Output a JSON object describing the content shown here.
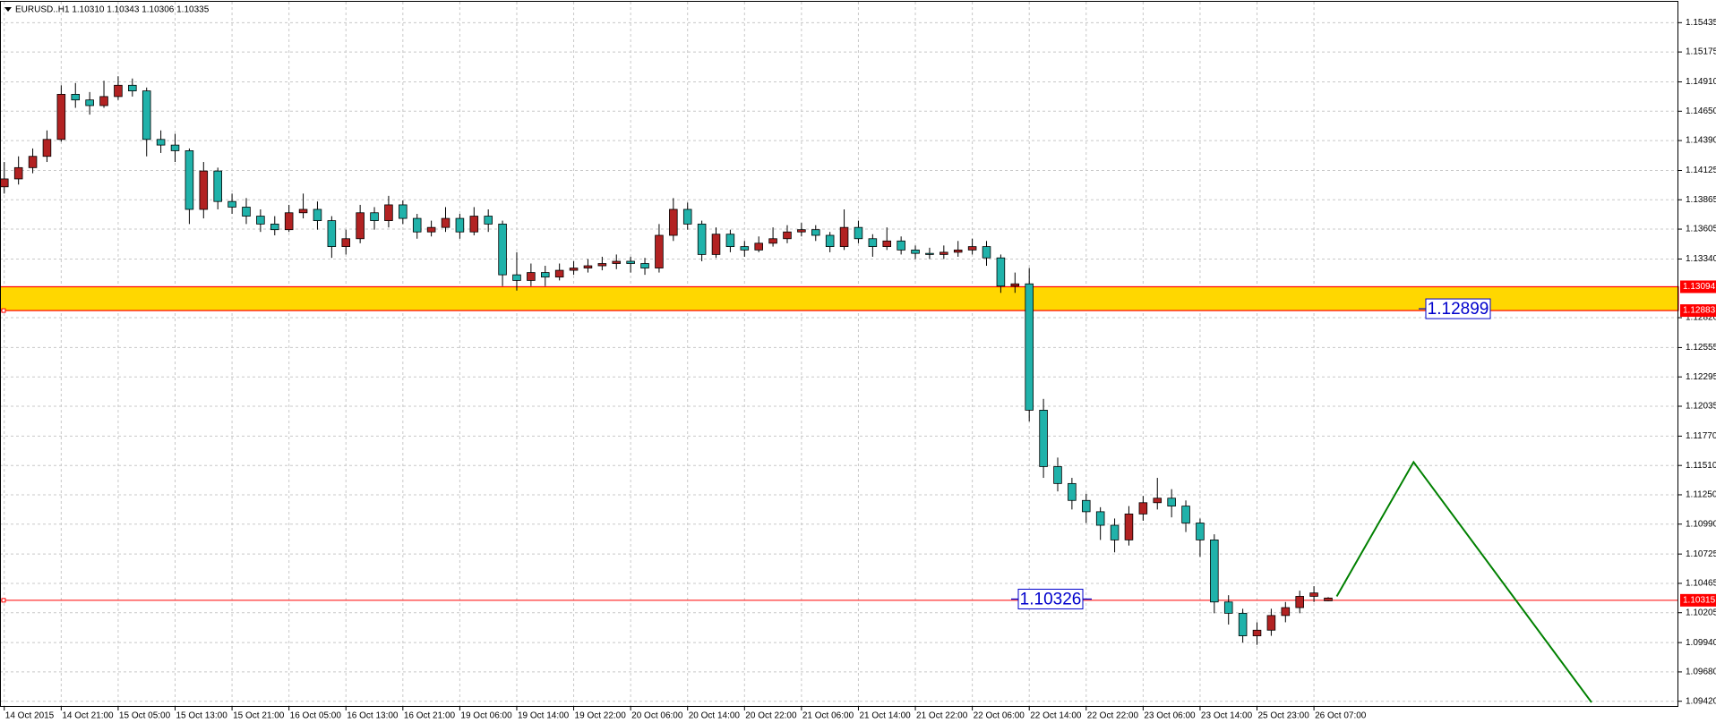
{
  "header": "EURUSD..H1  1.10310 1.10343 1.10306 1.10335",
  "chart_data": {
    "type": "candlestick",
    "up_color": "#b22222",
    "down_color": "#20b2aa",
    "wick_color": "#000000",
    "grid": true,
    "xlim": [
      -0.3,
      117.6
    ],
    "ylim": [
      1.0937,
      1.1562
    ],
    "xticks": [
      {
        "value": 0,
        "label": "14 Oct 2015"
      },
      {
        "value": 4,
        "label": "14 Oct 21:00"
      },
      {
        "value": 8,
        "label": "15 Oct 05:00"
      },
      {
        "value": 12,
        "label": "15 Oct 13:00"
      },
      {
        "value": 16,
        "label": "15 Oct 21:00"
      },
      {
        "value": 20,
        "label": "16 Oct 05:00"
      },
      {
        "value": 24,
        "label": "16 Oct 13:00"
      },
      {
        "value": 28,
        "label": "16 Oct 21:00"
      },
      {
        "value": 32,
        "label": "19 Oct 06:00"
      },
      {
        "value": 36,
        "label": "19 Oct 14:00"
      },
      {
        "value": 40,
        "label": "19 Oct 22:00"
      },
      {
        "value": 44,
        "label": "20 Oct 06:00"
      },
      {
        "value": 48,
        "label": "20 Oct 14:00"
      },
      {
        "value": 52,
        "label": "20 Oct 22:00"
      },
      {
        "value": 56,
        "label": "21 Oct 06:00"
      },
      {
        "value": 60,
        "label": "21 Oct 14:00"
      },
      {
        "value": 64,
        "label": "21 Oct 22:00"
      },
      {
        "value": 68,
        "label": "22 Oct 06:00"
      },
      {
        "value": 72,
        "label": "22 Oct 14:00"
      },
      {
        "value": 76,
        "label": "22 Oct 22:00"
      },
      {
        "value": 80,
        "label": "23 Oct 06:00"
      },
      {
        "value": 84,
        "label": "23 Oct 14:00"
      },
      {
        "value": 88,
        "label": "25 Oct 23:00"
      },
      {
        "value": 92,
        "label": "26 Oct 07:00"
      }
    ],
    "yticks": [
      1.15435,
      1.15175,
      {
        "value": 1.1491,
        "label": "1.14910"
      },
      {
        "value": 1.1465,
        "label": "1.14650"
      },
      {
        "value": 1.1439,
        "label": "1.14390"
      },
      1.14125,
      1.13865,
      1.13605,
      {
        "value": 1.1334,
        "label": "1.13340"
      },
      {
        "value": 1.1282,
        "label": "1.12820"
      },
      1.12555,
      1.12295,
      1.12035,
      {
        "value": 1.1177,
        "label": "1.11770"
      },
      {
        "value": 1.1151,
        "label": "1.11510"
      },
      {
        "value": 1.1125,
        "label": "1.11250"
      },
      {
        "value": 1.1099,
        "label": "1.10990"
      },
      1.10725,
      1.10465,
      1.10205,
      {
        "value": 1.0994,
        "label": "1.09940"
      },
      {
        "value": 1.0968,
        "label": "1.09680"
      },
      {
        "value": 1.0942,
        "label": "1.09420"
      }
    ],
    "candles": [
      [
        1.1398,
        1.142,
        1.1392,
        1.1405
      ],
      [
        1.1405,
        1.1425,
        1.14,
        1.1415
      ],
      [
        1.1415,
        1.1432,
        1.141,
        1.1425
      ],
      [
        1.1425,
        1.1448,
        1.142,
        1.144
      ],
      [
        1.144,
        1.1488,
        1.1438,
        1.148
      ],
      [
        1.148,
        1.149,
        1.1468,
        1.1475
      ],
      [
        1.1475,
        1.1482,
        1.1462,
        1.147
      ],
      [
        1.147,
        1.1492,
        1.1468,
        1.1478
      ],
      [
        1.1478,
        1.1496,
        1.1475,
        1.1488
      ],
      [
        1.1488,
        1.1494,
        1.1478,
        1.1483
      ],
      [
        1.1483,
        1.1486,
        1.1425,
        1.144
      ],
      [
        1.144,
        1.1448,
        1.1428,
        1.1435
      ],
      [
        1.1435,
        1.1445,
        1.142,
        1.143
      ],
      [
        1.143,
        1.1432,
        1.1365,
        1.1378
      ],
      [
        1.1378,
        1.142,
        1.137,
        1.1412
      ],
      [
        1.1412,
        1.1415,
        1.1378,
        1.1385
      ],
      [
        1.1385,
        1.1392,
        1.1374,
        1.138
      ],
      [
        1.138,
        1.1388,
        1.1365,
        1.1372
      ],
      [
        1.1372,
        1.1378,
        1.1358,
        1.1365
      ],
      [
        1.1365,
        1.1372,
        1.1355,
        1.136
      ],
      [
        1.136,
        1.1382,
        1.1358,
        1.1375
      ],
      [
        1.1375,
        1.1392,
        1.137,
        1.1378
      ],
      [
        1.1378,
        1.1385,
        1.136,
        1.1368
      ],
      [
        1.1368,
        1.1372,
        1.1335,
        1.1345
      ],
      [
        1.1345,
        1.136,
        1.1338,
        1.1352
      ],
      [
        1.1352,
        1.1382,
        1.1348,
        1.1375
      ],
      [
        1.1375,
        1.138,
        1.136,
        1.1368
      ],
      [
        1.1368,
        1.139,
        1.1362,
        1.1382
      ],
      [
        1.1382,
        1.1386,
        1.1365,
        1.137
      ],
      [
        1.137,
        1.1374,
        1.1352,
        1.1358
      ],
      [
        1.1358,
        1.1368,
        1.1354,
        1.1362
      ],
      [
        1.1362,
        1.138,
        1.1358,
        1.137
      ],
      [
        1.137,
        1.1374,
        1.1352,
        1.1358
      ],
      [
        1.1358,
        1.138,
        1.1355,
        1.1372
      ],
      [
        1.1372,
        1.1378,
        1.1358,
        1.1365
      ],
      [
        1.1365,
        1.1368,
        1.131,
        1.132
      ],
      [
        1.132,
        1.134,
        1.1306,
        1.1315
      ],
      [
        1.1315,
        1.133,
        1.131,
        1.1322
      ],
      [
        1.1322,
        1.1328,
        1.131,
        1.1318
      ],
      [
        1.1318,
        1.133,
        1.1315,
        1.1324
      ],
      [
        1.1324,
        1.1332,
        1.132,
        1.1326
      ],
      [
        1.1326,
        1.1334,
        1.1322,
        1.1328
      ],
      [
        1.1328,
        1.1336,
        1.1324,
        1.133
      ],
      [
        1.133,
        1.1338,
        1.1325,
        1.1332
      ],
      [
        1.1332,
        1.1336,
        1.1322,
        1.133
      ],
      [
        1.133,
        1.1335,
        1.132,
        1.1326
      ],
      [
        1.1326,
        1.1365,
        1.1322,
        1.1355
      ],
      [
        1.1355,
        1.1388,
        1.135,
        1.1378
      ],
      [
        1.1378,
        1.1384,
        1.136,
        1.1365
      ],
      [
        1.1365,
        1.1368,
        1.1332,
        1.1338
      ],
      [
        1.1338,
        1.1362,
        1.1335,
        1.1356
      ],
      [
        1.1356,
        1.136,
        1.134,
        1.1345
      ],
      [
        1.1345,
        1.135,
        1.1336,
        1.1342
      ],
      [
        1.1342,
        1.1354,
        1.134,
        1.1348
      ],
      [
        1.1348,
        1.1362,
        1.1345,
        1.1352
      ],
      [
        1.1352,
        1.1364,
        1.1348,
        1.1358
      ],
      [
        1.1358,
        1.1366,
        1.1354,
        1.136
      ],
      [
        1.136,
        1.1364,
        1.135,
        1.1355
      ],
      [
        1.1355,
        1.1358,
        1.134,
        1.1345
      ],
      [
        1.1345,
        1.1378,
        1.1342,
        1.1362
      ],
      [
        1.1362,
        1.1368,
        1.1348,
        1.1352
      ],
      [
        1.1352,
        1.1356,
        1.1336,
        1.1345
      ],
      [
        1.1345,
        1.1362,
        1.1342,
        1.135
      ],
      [
        1.135,
        1.1354,
        1.1338,
        1.1342
      ],
      [
        1.1342,
        1.1346,
        1.1334,
        1.1339
      ],
      [
        1.1339,
        1.1344,
        1.1334,
        1.1338
      ],
      [
        1.1338,
        1.1346,
        1.1334,
        1.134
      ],
      [
        1.134,
        1.135,
        1.1336,
        1.1342
      ],
      [
        1.1342,
        1.1352,
        1.1338,
        1.1345
      ],
      [
        1.1345,
        1.135,
        1.1328,
        1.1335
      ],
      [
        1.1335,
        1.1338,
        1.1304,
        1.131
      ],
      [
        1.131,
        1.1322,
        1.1304,
        1.1312
      ],
      [
        1.1312,
        1.1326,
        1.119,
        1.12
      ],
      [
        1.12,
        1.121,
        1.114,
        1.115
      ],
      [
        1.115,
        1.1158,
        1.1128,
        1.1135
      ],
      [
        1.1135,
        1.114,
        1.1112,
        1.112
      ],
      [
        1.112,
        1.1126,
        1.11,
        1.111
      ],
      [
        1.111,
        1.1114,
        1.1085,
        1.1098
      ],
      [
        1.1098,
        1.1104,
        1.1074,
        1.1085
      ],
      [
        1.1085,
        1.1115,
        1.108,
        1.1108
      ],
      [
        1.1108,
        1.1124,
        1.1102,
        1.1118
      ],
      [
        1.1118,
        1.114,
        1.1112,
        1.1122
      ],
      [
        1.1122,
        1.113,
        1.1105,
        1.1115
      ],
      [
        1.1115,
        1.112,
        1.1092,
        1.11
      ],
      [
        1.11,
        1.1104,
        1.107,
        1.1085
      ],
      [
        1.1085,
        1.109,
        1.102,
        1.103
      ],
      [
        1.103,
        1.1036,
        1.101,
        1.102
      ],
      [
        1.102,
        1.1024,
        1.0994,
        1.1
      ],
      [
        1.1,
        1.1012,
        1.0992,
        1.1005
      ],
      [
        1.1005,
        1.1024,
        1.1,
        1.1018
      ],
      [
        1.1018,
        1.103,
        1.1012,
        1.1025
      ],
      [
        1.1025,
        1.104,
        1.102,
        1.1035
      ],
      [
        1.1035,
        1.1044,
        1.103,
        1.1038
      ],
      [
        1.1031,
        1.10343,
        1.10306,
        1.10335
      ]
    ],
    "zone": {
      "top": 1.13094,
      "bottom": 1.12883,
      "color": "#ffd700",
      "border": "#ff0000"
    },
    "level": {
      "value": 1.10315,
      "color": "#ff0000"
    },
    "callouts": [
      {
        "label": "1.12899",
        "value": 1.12899
      },
      {
        "label": "1.10326",
        "value": 1.10326
      }
    ],
    "projection": {
      "x": [
        93.6,
        99,
        111.5
      ],
      "y": [
        1.1035,
        1.1154,
        1.0941
      ],
      "color": "#008000"
    }
  }
}
